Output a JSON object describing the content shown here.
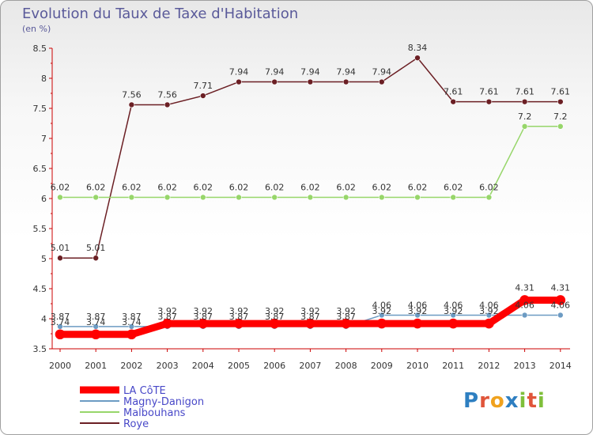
{
  "title": "Evolution du Taux de Taxe d'Habitation",
  "unit_label": "(en %)",
  "logo": "Proxiti",
  "colors": {
    "LA CôTE": "#ff0000",
    "Magny-Danigon": "#6c9bc3",
    "Malbouhans": "#97d66a",
    "Roye": "#6b1f24"
  },
  "chart_data": {
    "type": "line",
    "title": "Evolution du Taux de Taxe d'Habitation",
    "ylabel": "(en %)",
    "xlabel": "",
    "x": [
      "2000",
      "2001",
      "2002",
      "2003",
      "2004",
      "2005",
      "2006",
      "2007",
      "2008",
      "2009",
      "2010",
      "2011",
      "2012",
      "2013",
      "2014"
    ],
    "ylim": [
      3.5,
      8.5
    ],
    "yticks": [
      "3.5",
      "4",
      "4.5",
      "5",
      "5.5",
      "6",
      "6.5",
      "7",
      "7.5",
      "8",
      "8.5"
    ],
    "series": [
      {
        "name": "LA CôTE",
        "values": [
          3.74,
          3.74,
          3.74,
          3.92,
          3.92,
          3.92,
          3.92,
          3.92,
          3.92,
          3.92,
          3.92,
          3.92,
          3.92,
          4.31,
          4.31
        ],
        "labels": [
          "3.74",
          "3.74",
          "3.74",
          "3.92",
          "3.92",
          "3.92",
          "3.92",
          "3.92",
          "3.92",
          "3.92",
          "3.92",
          "3.92",
          "3.92",
          "4.31",
          "4.31"
        ]
      },
      {
        "name": "Magny-Danigon",
        "values": [
          3.87,
          3.87,
          3.87,
          3.87,
          3.87,
          3.87,
          3.87,
          3.87,
          3.87,
          4.06,
          4.06,
          4.06,
          4.06,
          4.06,
          4.06
        ],
        "labels": [
          "3.87",
          "3.87",
          "3.87",
          "3.87",
          "3.87",
          "3.87",
          "3.87",
          "3.87",
          "3.87",
          "4.06",
          "4.06",
          "4.06",
          "4.06",
          "4.06",
          "4.06"
        ]
      },
      {
        "name": "Malbouhans",
        "values": [
          6.02,
          6.02,
          6.02,
          6.02,
          6.02,
          6.02,
          6.02,
          6.02,
          6.02,
          6.02,
          6.02,
          6.02,
          6.02,
          7.2,
          7.2
        ],
        "labels": [
          "6.02",
          "6.02",
          "6.02",
          "6.02",
          "6.02",
          "6.02",
          "6.02",
          "6.02",
          "6.02",
          "6.02",
          "6.02",
          "6.02",
          "6.02",
          "7.2",
          "7.2"
        ]
      },
      {
        "name": "Roye",
        "values": [
          5.01,
          5.01,
          7.56,
          7.56,
          7.71,
          7.94,
          7.94,
          7.94,
          7.94,
          7.94,
          8.34,
          7.61,
          7.61,
          7.61,
          7.61
        ],
        "labels": [
          "5.01",
          "5.01",
          "7.56",
          "7.56",
          "7.71",
          "7.94",
          "7.94",
          "7.94",
          "7.94",
          "7.94",
          "8.34",
          "7.61",
          "7.61",
          "7.61",
          "7.61"
        ]
      }
    ],
    "legend": [
      "LA CôTE",
      "Magny-Danigon",
      "Malbouhans",
      "Roye"
    ],
    "legend_position": "bottom-left",
    "grid": false
  }
}
